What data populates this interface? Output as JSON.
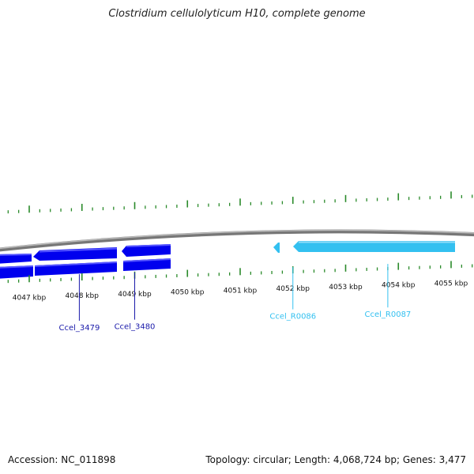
{
  "title": "Clostridium cellulolyticum H10, complete genome",
  "footer": {
    "accession_label": "Accession: NC_011898",
    "stats_label": "Topology: circular; Length: 4,068,724 bp; Genes: 3,477"
  },
  "colors": {
    "cds_gene": "#0000ee",
    "cds_gene_highlight": "#4a4aff",
    "rna_gene": "#33c0f0",
    "rna_gene_highlight": "#8fdcf8",
    "backbone": "#7a7a7a",
    "tick": "#2a8a2a",
    "gene_label_cds": "#1a1aaa",
    "gene_label_rna": "#33c0f0"
  },
  "scale_labels": [
    {
      "kbp": 4047,
      "label": "4047 kbp"
    },
    {
      "kbp": 4048,
      "label": "4048 kbp"
    },
    {
      "kbp": 4049,
      "label": "4049 kbp"
    },
    {
      "kbp": 4050,
      "label": "4050 kbp"
    },
    {
      "kbp": 4051,
      "label": "4051 kbp"
    },
    {
      "kbp": 4052,
      "label": "4052 kbp"
    },
    {
      "kbp": 4053,
      "label": "4053 kbp"
    },
    {
      "kbp": 4054,
      "label": "4054 kbp"
    },
    {
      "kbp": 4055,
      "label": "4055 kbp"
    }
  ],
  "genes": [
    {
      "name": "Ccel_3479",
      "type": "CDS",
      "label_kbp": 4047.95
    },
    {
      "name": "Ccel_3480",
      "type": "CDS",
      "label_kbp": 4049.0
    },
    {
      "name": "Ccel_R0086",
      "type": "RNA",
      "label_kbp": 4052.0
    },
    {
      "name": "Ccel_R0087",
      "type": "RNA",
      "label_kbp": 4053.8
    }
  ]
}
